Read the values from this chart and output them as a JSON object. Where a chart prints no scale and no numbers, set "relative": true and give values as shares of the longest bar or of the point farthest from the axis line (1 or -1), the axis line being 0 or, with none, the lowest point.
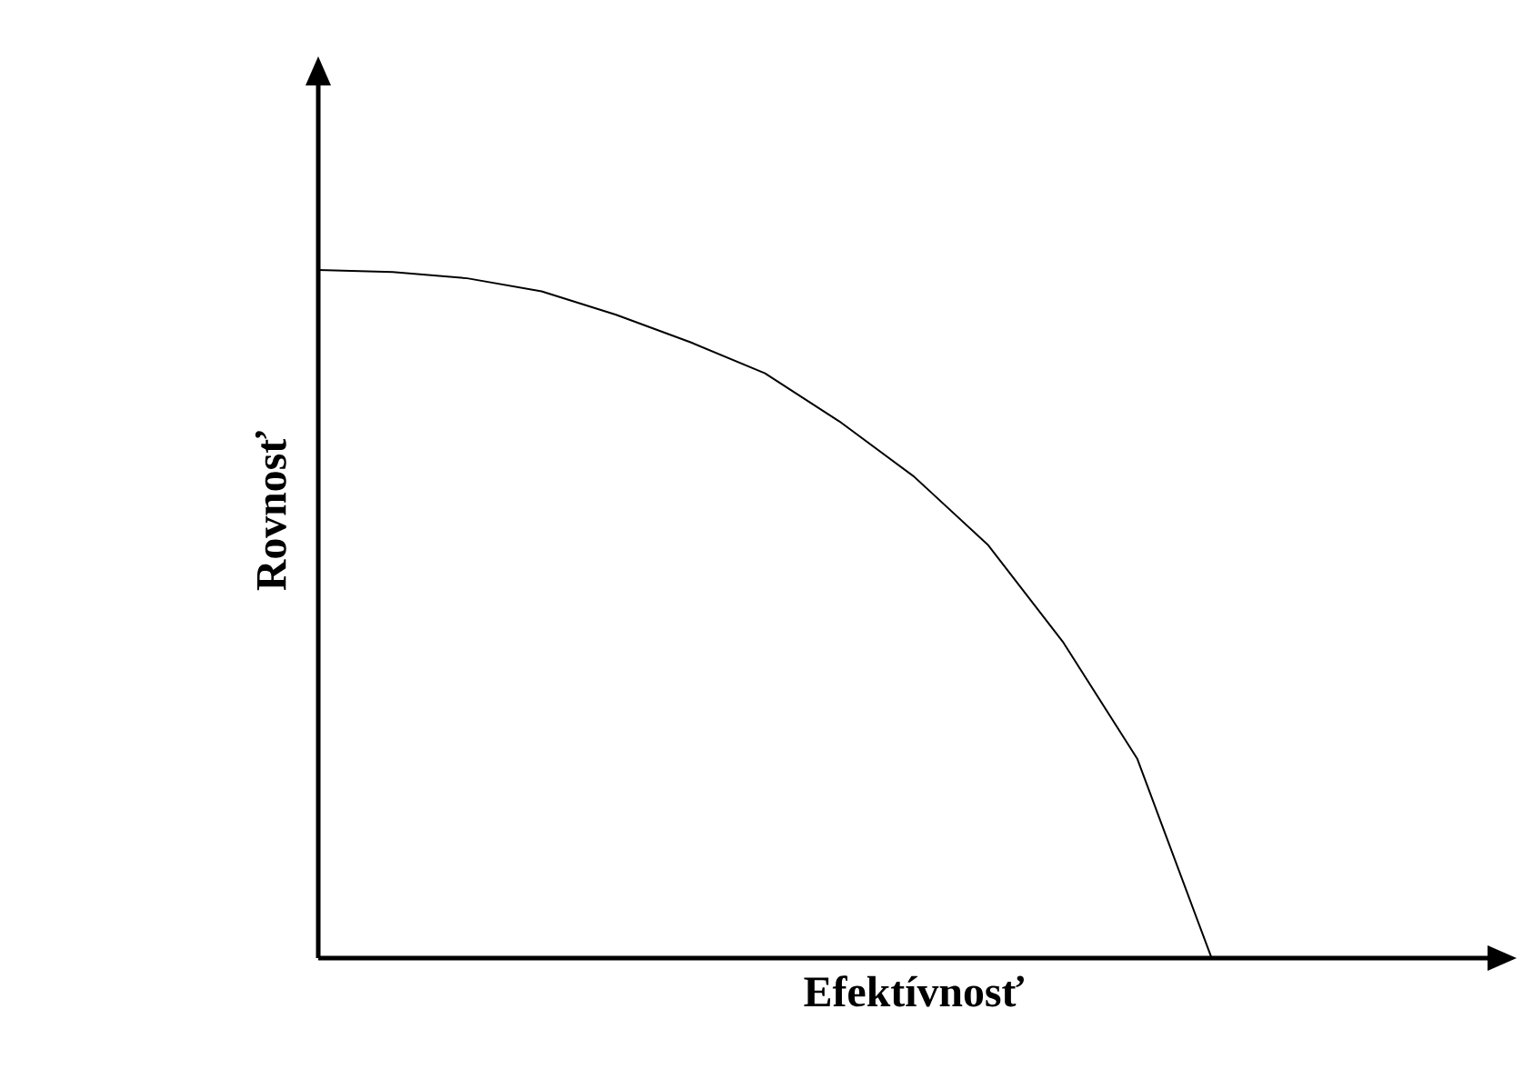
{
  "chart_data": {
    "type": "line",
    "relative": true,
    "xlabel": "Efektívnosť",
    "ylabel": "Rovnosť",
    "categories": [
      null,
      null,
      null,
      null,
      null,
      null,
      null,
      null,
      null,
      null,
      null,
      null,
      null,
      null,
      null,
      null,
      null
    ],
    "series": [
      {
        "color": "#000000",
        "values": [
          1,
          0.997,
          0.988,
          0.969,
          0.935,
          0.895,
          0.85,
          0.78,
          0.7,
          0.6,
          0.46,
          0.29,
          0,
          null,
          null,
          null,
          null
        ]
      }
    ],
    "marker": "none",
    "line_style": "solid"
  }
}
